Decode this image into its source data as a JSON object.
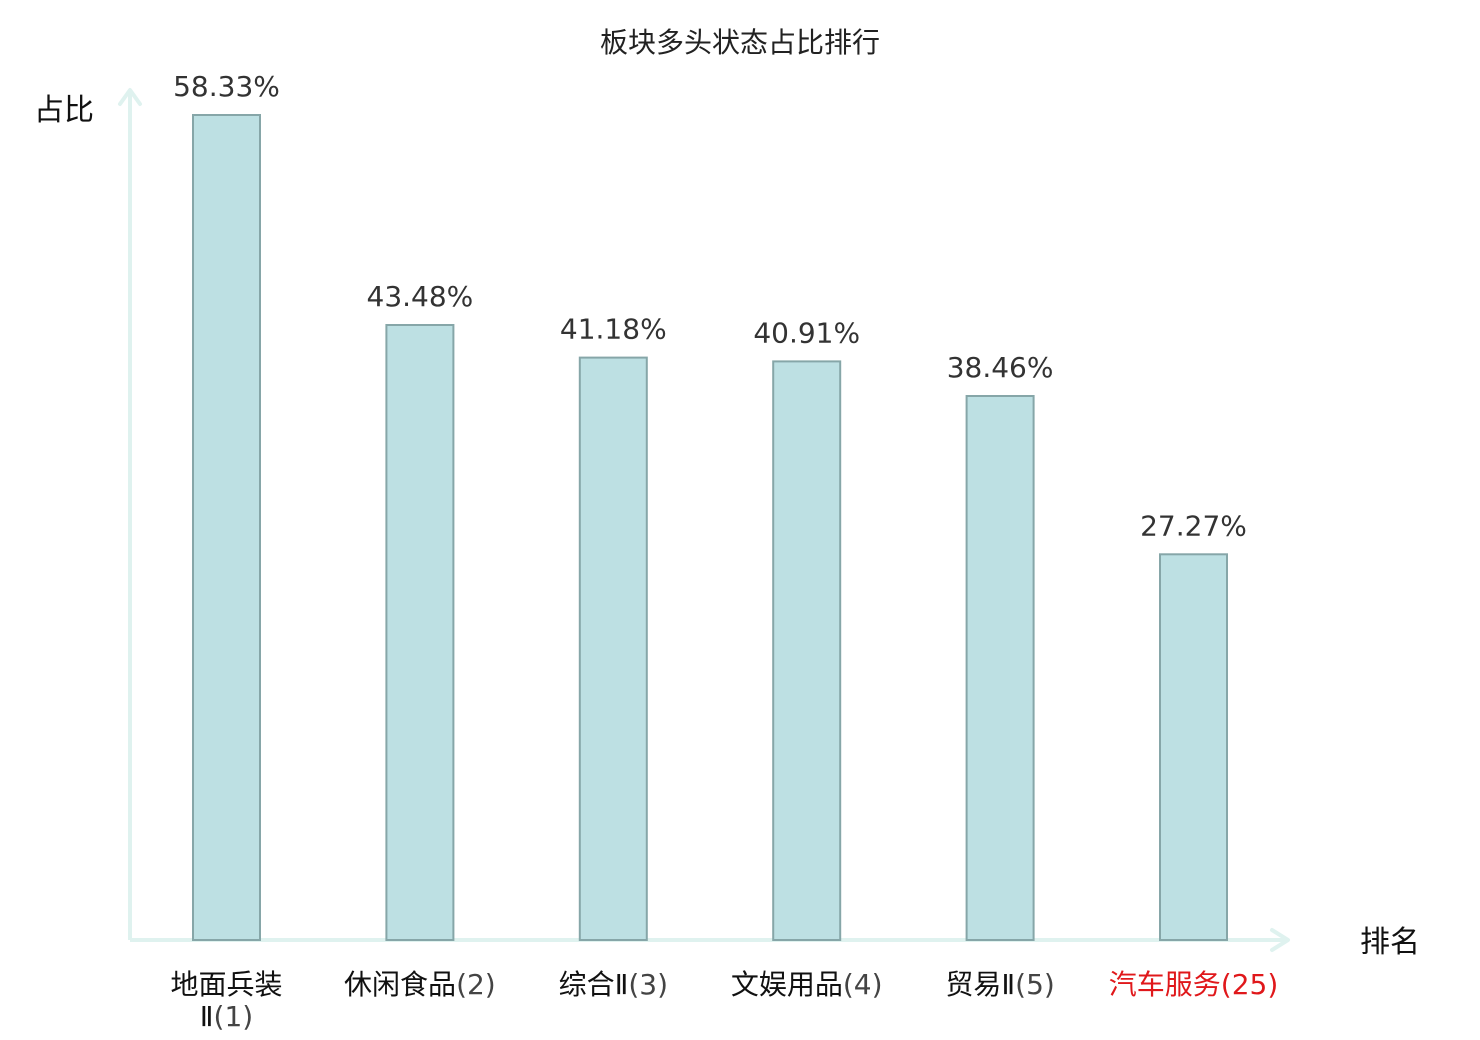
{
  "chart_data": {
    "type": "bar",
    "title": "板块多头状态占比排行",
    "ylabel": "占比",
    "xlabel": "排名",
    "ylim": [
      0,
      58.33
    ],
    "grid": false,
    "legend": "none",
    "categories": [
      {
        "name": "地面兵装Ⅱ",
        "rank": "(1)",
        "name_lines": [
          "地面兵装",
          "Ⅱ"
        ],
        "highlight": false
      },
      {
        "name": "休闲食品",
        "rank": "(2)",
        "highlight": false
      },
      {
        "name": "综合Ⅱ",
        "rank": "(3)",
        "highlight": false
      },
      {
        "name": "文娱用品",
        "rank": "(4)",
        "highlight": false
      },
      {
        "name": "贸易Ⅱ",
        "rank": "(5)",
        "highlight": false
      },
      {
        "name": "汽车服务",
        "rank": "(25)",
        "highlight": true
      }
    ],
    "values": [
      58.33,
      43.48,
      41.18,
      40.91,
      38.46,
      27.27
    ],
    "value_labels": [
      "58.33%",
      "43.48%",
      "41.18%",
      "40.91%",
      "38.46%",
      "27.27%"
    ],
    "colors": {
      "bar_fill": "#bde0e3",
      "bar_stroke": "#86a6a8",
      "axis": "#dff2ef",
      "highlight": "#e0181b",
      "label": "#111111",
      "value_label": "#333333"
    }
  }
}
